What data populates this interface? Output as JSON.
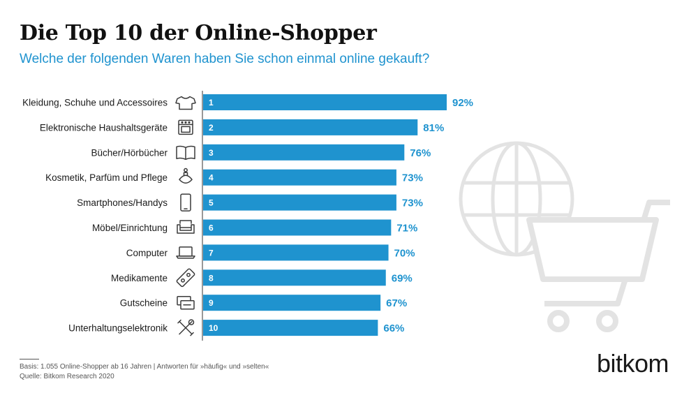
{
  "header": {
    "title": "Die Top 10 der Online-Shopper",
    "subtitle": "Welche der folgenden Waren haben Sie schon einmal online gekauft?"
  },
  "colors": {
    "bar": "#1f93cf",
    "value_label": "#1f93cf",
    "background_art": "#e3e3e3"
  },
  "chart_data": {
    "type": "bar",
    "orientation": "horizontal",
    "categories": [
      "Kleidung, Schuhe und Accessoires",
      "Elektronische Haushaltsgeräte",
      "Bücher/Hörbücher",
      "Kosmetik, Parfüm und Pflege",
      "Smartphones/Handys",
      "Möbel/Einrichtung",
      "Computer",
      "Medikamente",
      "Gutscheine",
      "Unterhaltungselektronik"
    ],
    "ranks": [
      "1",
      "2",
      "3",
      "4",
      "5",
      "6",
      "7",
      "8",
      "9",
      "10"
    ],
    "values": [
      92,
      81,
      76,
      73,
      73,
      71,
      70,
      69,
      67,
      66
    ],
    "value_labels": [
      "92%",
      "81%",
      "76%",
      "73%",
      "73%",
      "71%",
      "70%",
      "69%",
      "67%",
      "66%"
    ],
    "icons": [
      "tshirt-icon",
      "oven-icon",
      "book-icon",
      "perfume-icon",
      "smartphone-icon",
      "armchair-icon",
      "laptop-icon",
      "pill-package-icon",
      "voucher-cards-icon",
      "tools-icon"
    ],
    "xlim": [
      0,
      92
    ],
    "grid": false,
    "legend": "none"
  },
  "footer": {
    "basis": "Basis: 1.055 Online-Shopper ab 16 Jahren | Antworten für »häufig« und »selten«",
    "source": "Quelle: Bitkom Research 2020",
    "logo": "bitkom"
  },
  "background_icons": [
    "globe-icon",
    "shopping-cart-icon"
  ]
}
